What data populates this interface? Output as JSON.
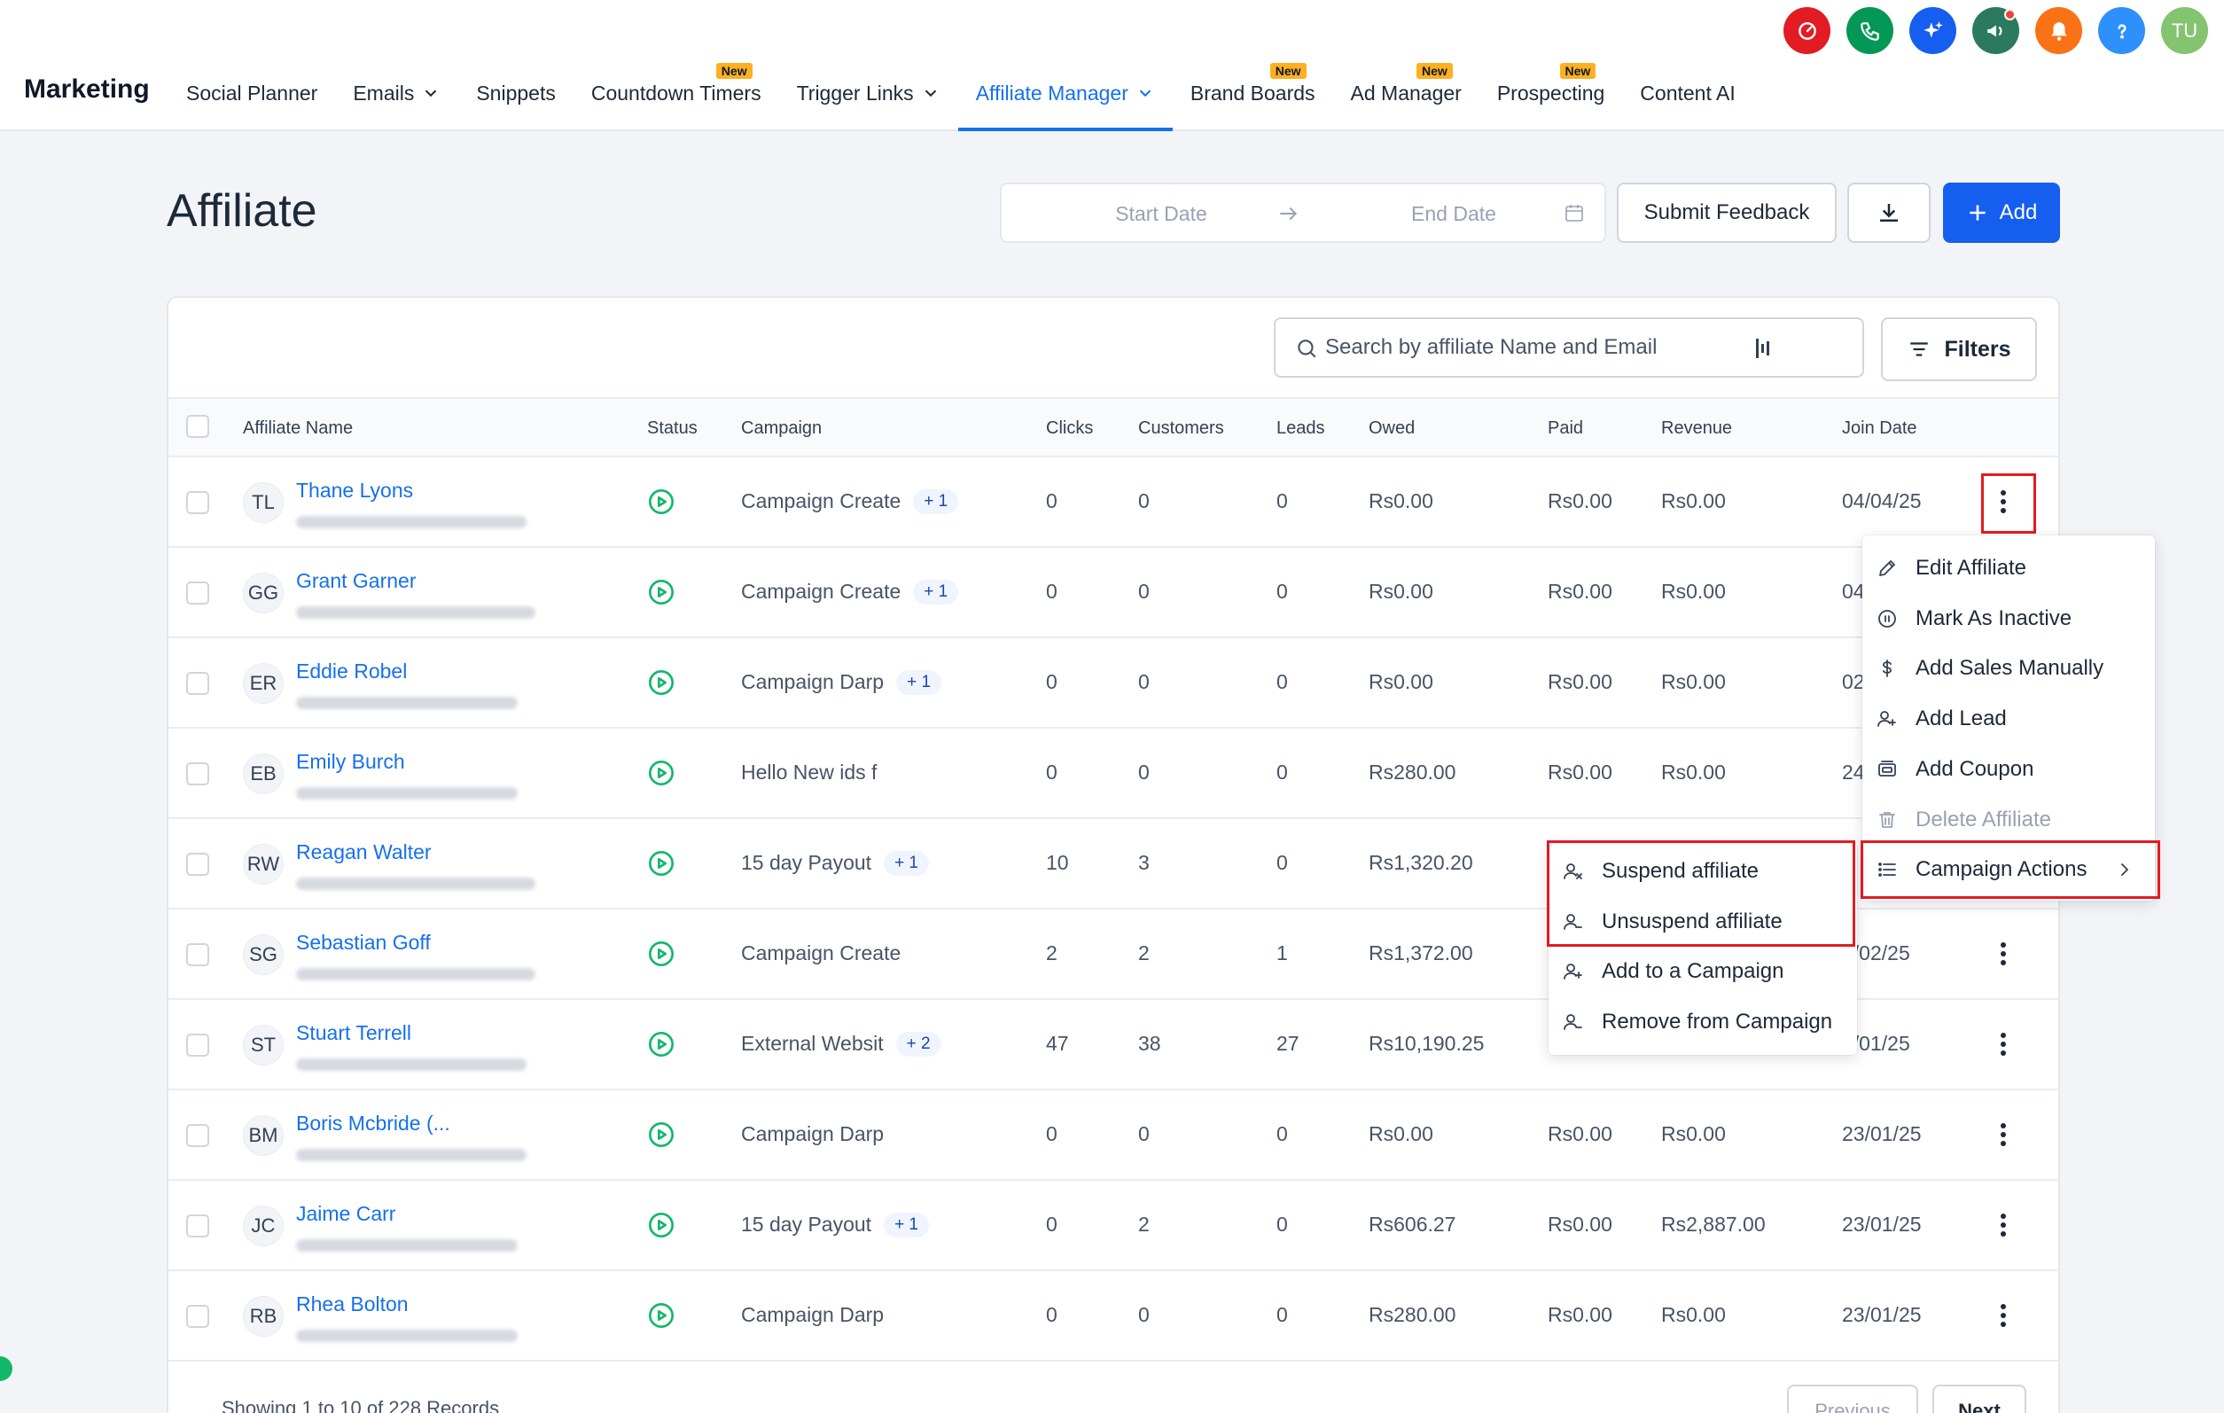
{
  "header": {
    "brand": "Marketing",
    "nav": [
      {
        "label": "Social Planner",
        "new": false,
        "dropdown": false,
        "active": false
      },
      {
        "label": "Emails",
        "new": false,
        "dropdown": true,
        "active": false
      },
      {
        "label": "Snippets",
        "new": false,
        "dropdown": false,
        "active": false
      },
      {
        "label": "Countdown Timers",
        "new": true,
        "dropdown": false,
        "active": false
      },
      {
        "label": "Trigger Links",
        "new": false,
        "dropdown": true,
        "active": false
      },
      {
        "label": "Affiliate Manager",
        "new": false,
        "dropdown": true,
        "active": true
      },
      {
        "label": "Brand Boards",
        "new": true,
        "dropdown": false,
        "active": false
      },
      {
        "label": "Ad Manager",
        "new": true,
        "dropdown": false,
        "active": false
      },
      {
        "label": "Prospecting",
        "new": true,
        "dropdown": false,
        "active": false
      },
      {
        "label": "Content AI",
        "new": false,
        "dropdown": false,
        "active": false
      }
    ],
    "new_badge": "New",
    "top_icons": [
      {
        "name": "speedometer-icon",
        "color": "#e31b23"
      },
      {
        "name": "phone-icon",
        "color": "#039855"
      },
      {
        "name": "sparkles-icon",
        "color": "#155eef"
      },
      {
        "name": "megaphone-icon",
        "color": "#2b7a5f"
      },
      {
        "name": "bell-icon",
        "color": "#f97316"
      },
      {
        "name": "help-icon",
        "color": "#2e90fa"
      }
    ],
    "avatar": {
      "initials": "TU",
      "color": "#84c36f"
    }
  },
  "page": {
    "title": "Affiliate",
    "start_date_placeholder": "Start Date",
    "end_date_placeholder": "End Date",
    "feedback_label": "Submit Feedback",
    "add_label": "Add"
  },
  "table": {
    "search_placeholder": "Search by affiliate Name and Email",
    "filters_label": "Filters",
    "columns": [
      "Affiliate Name",
      "Status",
      "Campaign",
      "Clicks",
      "Customers",
      "Leads",
      "Owed",
      "Paid",
      "Revenue",
      "Join Date"
    ],
    "rows": [
      {
        "initials": "TL",
        "name": "Thane Lyons",
        "campaign": "Campaign Create",
        "extra": "+ 1",
        "clicks": "0",
        "customers": "0",
        "leads": "0",
        "owed": "Rs0.00",
        "paid": "Rs0.00",
        "revenue": "Rs0.00",
        "join": "04/04/25"
      },
      {
        "initials": "GG",
        "name": "Grant Garner",
        "campaign": "Campaign Create",
        "extra": "+ 1",
        "clicks": "0",
        "customers": "0",
        "leads": "0",
        "owed": "Rs0.00",
        "paid": "Rs0.00",
        "revenue": "Rs0.00",
        "join": "04"
      },
      {
        "initials": "ER",
        "name": "Eddie Robel",
        "campaign": "Campaign Darp",
        "extra": "+ 1",
        "clicks": "0",
        "customers": "0",
        "leads": "0",
        "owed": "Rs0.00",
        "paid": "Rs0.00",
        "revenue": "Rs0.00",
        "join": "02"
      },
      {
        "initials": "EB",
        "name": "Emily Burch",
        "campaign": "Hello New ids f",
        "extra": "",
        "clicks": "0",
        "customers": "0",
        "leads": "0",
        "owed": "Rs280.00",
        "paid": "Rs0.00",
        "revenue": "Rs0.00",
        "join": "24"
      },
      {
        "initials": "RW",
        "name": "Reagan Walter",
        "campaign": "15 day Payout",
        "extra": "+ 1",
        "clicks": "10",
        "customers": "3",
        "leads": "0",
        "owed": "Rs1,320.20",
        "paid": "",
        "revenue": "",
        "join": ""
      },
      {
        "initials": "SG",
        "name": "Sebastian Goff",
        "campaign": "Campaign Create",
        "extra": "",
        "clicks": "2",
        "customers": "2",
        "leads": "1",
        "owed": "Rs1,372.00",
        "paid": "",
        "revenue": "",
        "join": "3/02/25"
      },
      {
        "initials": "ST",
        "name": "Stuart Terrell",
        "campaign": "External Websit",
        "extra": "+ 2",
        "clicks": "47",
        "customers": "38",
        "leads": "27",
        "owed": "Rs10,190.25",
        "paid": "",
        "revenue": "",
        "join": "3/01/25"
      },
      {
        "initials": "BM",
        "name": "Boris Mcbride (...",
        "campaign": "Campaign Darp",
        "extra": "",
        "clicks": "0",
        "customers": "0",
        "leads": "0",
        "owed": "Rs0.00",
        "paid": "Rs0.00",
        "revenue": "Rs0.00",
        "join": "23/01/25"
      },
      {
        "initials": "JC",
        "name": "Jaime Carr",
        "campaign": "15 day Payout",
        "extra": "+ 1",
        "clicks": "0",
        "customers": "2",
        "leads": "0",
        "owed": "Rs606.27",
        "paid": "Rs0.00",
        "revenue": "Rs2,887.00",
        "join": "23/01/25"
      },
      {
        "initials": "RB",
        "name": "Rhea Bolton",
        "campaign": "Campaign Darp",
        "extra": "",
        "clicks": "0",
        "customers": "0",
        "leads": "0",
        "owed": "Rs280.00",
        "paid": "Rs0.00",
        "revenue": "Rs0.00",
        "join": "23/01/25"
      }
    ],
    "footer_text": "Showing 1 to 10 of 228 Records",
    "prev_label": "Previous",
    "next_label": "Next"
  },
  "row_menu": {
    "items": [
      {
        "label": "Edit Affiliate",
        "icon": "pencil-icon",
        "disabled": false
      },
      {
        "label": "Mark As Inactive",
        "icon": "pause-circle-icon",
        "disabled": false
      },
      {
        "label": "Add Sales Manually",
        "icon": "dollar-icon",
        "disabled": false
      },
      {
        "label": "Add Lead",
        "icon": "user-plus-icon",
        "disabled": false
      },
      {
        "label": "Add Coupon",
        "icon": "coupon-icon",
        "disabled": false
      },
      {
        "label": "Delete Affiliate",
        "icon": "trash-icon",
        "disabled": true
      },
      {
        "label": "Campaign Actions",
        "icon": "list-icon",
        "disabled": false
      }
    ]
  },
  "campaign_submenu": {
    "items": [
      {
        "label": "Suspend affiliate",
        "icon": "user-x-icon"
      },
      {
        "label": "Unsuspend affiliate",
        "icon": "user-check-icon"
      },
      {
        "label": "Add to a Campaign",
        "icon": "user-plus-icon"
      },
      {
        "label": "Remove from Campaign",
        "icon": "user-minus-icon"
      }
    ]
  },
  "colors": {
    "accent": "#1570ef",
    "primary_button": "#155eef",
    "status_active": "#12b76a",
    "highlight": "#e31b23"
  }
}
